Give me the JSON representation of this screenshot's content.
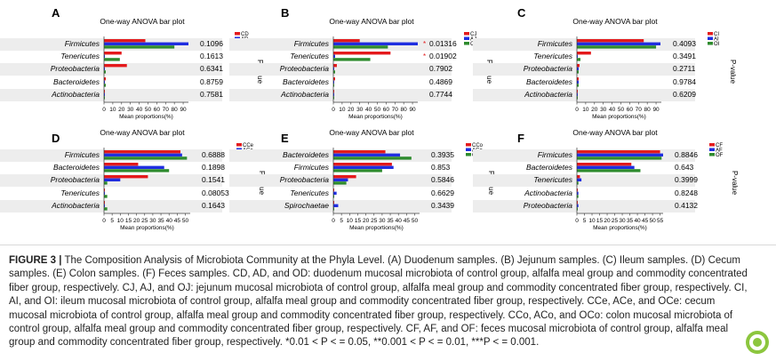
{
  "chart_data": [
    {
      "panel": "A",
      "type": "bar",
      "title": "One-way ANOVA bar plot",
      "categories": [
        "Firmicutes",
        "Tenericutes",
        "Proteobacteria",
        "Bacteroidetes",
        "Actinobacteria"
      ],
      "series": [
        {
          "name": "CD",
          "color": "#e41a1c",
          "values": [
            47,
            20,
            26,
            2,
            0.5
          ]
        },
        {
          "name": "AD",
          "color": "#1f2ee0",
          "values": [
            96,
            1,
            1,
            1,
            0.5
          ]
        },
        {
          "name": "OD",
          "color": "#2e8b2e",
          "values": [
            80,
            18,
            2,
            2,
            0.5
          ]
        }
      ],
      "xticks": [
        0,
        10,
        20,
        30,
        40,
        50,
        60,
        70,
        80,
        90
      ],
      "xlim": [
        0,
        96
      ],
      "xlabel": "Mean proportions(%)",
      "pvalues": [
        "0.1096",
        "0.1613",
        "0.6341",
        "0.8759",
        "0.7581"
      ],
      "stars": [
        "",
        "",
        "",
        "",
        ""
      ],
      "pvalue_label": "P-value"
    },
    {
      "panel": "B",
      "type": "bar",
      "title": "One-way ANOVA bar plot",
      "categories": [
        "Firmicutes",
        "Tenericutes",
        "Proteobacteria",
        "Bacteroidetes",
        "Actinobacteria"
      ],
      "series": [
        {
          "name": "CJ",
          "color": "#e41a1c",
          "values": [
            30,
            65,
            4,
            2,
            0.5
          ]
        },
        {
          "name": "AJ",
          "color": "#1f2ee0",
          "values": [
            96,
            2,
            1,
            1,
            0.5
          ]
        },
        {
          "name": "OJ",
          "color": "#2e8b2e",
          "values": [
            62,
            42,
            2,
            1,
            0.5
          ]
        }
      ],
      "xticks": [
        0,
        10,
        20,
        30,
        40,
        50,
        60,
        70,
        80,
        90
      ],
      "xlim": [
        0,
        96
      ],
      "xlabel": "Mean proportions(%)",
      "pvalues": [
        "0.01316",
        "0.01902",
        "0.7902",
        "0.4869",
        "0.7744"
      ],
      "stars": [
        "*",
        "*",
        "",
        "",
        ""
      ],
      "pvalue_label": "P-value"
    },
    {
      "panel": "C",
      "type": "bar",
      "title": "One-way ANOVA bar plot",
      "categories": [
        "Firmicutes",
        "Tenericutes",
        "Proteobacteria",
        "Bacteroidetes",
        "Actinobacteria"
      ],
      "series": [
        {
          "name": "CI",
          "color": "#e41a1c",
          "values": [
            76,
            16,
            3,
            2,
            0.5
          ]
        },
        {
          "name": "AI",
          "color": "#1f2ee0",
          "values": [
            95,
            1,
            2,
            2,
            0.5
          ]
        },
        {
          "name": "OI",
          "color": "#2e8b2e",
          "values": [
            90,
            4,
            2,
            2,
            0.5
          ]
        }
      ],
      "xticks": [
        0,
        10,
        20,
        30,
        40,
        50,
        60,
        70,
        80,
        90
      ],
      "xlim": [
        0,
        96
      ],
      "xlabel": "Mean proportions(%)",
      "pvalues": [
        "0.4093",
        "0.3491",
        "0.2711",
        "0.9784",
        "0.6209"
      ],
      "stars": [
        "",
        "",
        "",
        "",
        ""
      ],
      "pvalue_label": "P-value"
    },
    {
      "panel": "D",
      "type": "bar",
      "title": "One-way ANOVA bar plot",
      "categories": [
        "Firmicutes",
        "Bacteroidetes",
        "Proteobacteria",
        "Tenericutes",
        "Actinobacteria"
      ],
      "series": [
        {
          "name": "CCe",
          "color": "#e41a1c",
          "values": [
            47,
            21,
            27,
            0.5,
            0.5
          ]
        },
        {
          "name": "ACe",
          "color": "#1f2ee0",
          "values": [
            48,
            37,
            10,
            0.5,
            0.5
          ]
        },
        {
          "name": "OCe",
          "color": "#2e8b2e",
          "values": [
            51,
            40,
            2,
            2,
            2
          ]
        }
      ],
      "xticks": [
        0,
        5,
        10,
        15,
        20,
        25,
        30,
        35,
        40,
        45,
        50
      ],
      "xlim": [
        0,
        53
      ],
      "xlabel": "Mean proportions(%)",
      "pvalues": [
        "0.6888",
        "0.1898",
        "0.1541",
        "0.08053",
        "0.1643"
      ],
      "stars": [
        "",
        "",
        "",
        "",
        ""
      ],
      "pvalue_label": "P-value"
    },
    {
      "panel": "E",
      "type": "bar",
      "title": "One-way ANOVA bar plot",
      "categories": [
        "Bacteroidetes",
        "Firmicutes",
        "Proteobacteria",
        "Tenericutes",
        "Spirochaetae"
      ],
      "series": [
        {
          "name": "CCo",
          "color": "#e41a1c",
          "values": [
            32,
            36,
            14,
            0.5,
            0.5
          ]
        },
        {
          "name": "ACo",
          "color": "#1f2ee0",
          "values": [
            41,
            37,
            9,
            2,
            3
          ]
        },
        {
          "name": "OCo",
          "color": "#2e8b2e",
          "values": [
            48,
            30,
            8,
            0.5,
            0.5
          ]
        }
      ],
      "xticks": [
        0,
        5,
        10,
        15,
        20,
        25,
        30,
        35,
        40,
        45,
        50
      ],
      "xlim": [
        0,
        53
      ],
      "xlabel": "Mean proportions(%)",
      "pvalues": [
        "0.3935",
        "0.853",
        "0.5846",
        "0.6629",
        "0.3439"
      ],
      "stars": [
        "",
        "",
        "",
        "",
        ""
      ],
      "pvalue_label": "P-value"
    },
    {
      "panel": "F",
      "type": "bar",
      "title": "One-way ANOVA bar plot",
      "categories": [
        "Firmicutes",
        "Bacteroidetes",
        "Tenericutes",
        "Actinobacteria",
        "Proteobacteria"
      ],
      "series": [
        {
          "name": "CF",
          "color": "#e41a1c",
          "values": [
            55,
            36,
            2,
            0.5,
            0.5
          ]
        },
        {
          "name": "AF",
          "color": "#1f2ee0",
          "values": [
            57,
            38,
            3,
            1,
            1
          ]
        },
        {
          "name": "OF",
          "color": "#2e8b2e",
          "values": [
            56,
            42,
            1,
            1,
            0.5
          ]
        }
      ],
      "xticks": [
        0,
        5,
        10,
        15,
        20,
        25,
        30,
        35,
        40,
        45,
        50,
        55
      ],
      "xlim": [
        0,
        57
      ],
      "xlabel": "Mean proportions(%)",
      "pvalues": [
        "0.8846",
        "0.643",
        "0.3999",
        "0.8248",
        "0.4132"
      ],
      "stars": [
        "",
        "",
        "",
        "",
        ""
      ],
      "pvalue_label": "P-value"
    }
  ],
  "caption": {
    "label": "FIGURE 3 |",
    "text": " The Composition Analysis of Microbiota Community at the Phyla Level. (A) Duodenum samples. (B) Jejunum samples. (C) Ileum samples. (D) Cecum samples. (E) Colon samples. (F) Feces samples. CD, AD, and OD: duodenum mucosal microbiota of control group, alfalfa meal group and commodity concentrated fiber group, respectively. CJ, AJ, and OJ: jejunum mucosal microbiota of control group, alfalfa meal group and commodity concentrated fiber group, respectively. CI, AI, and OI: ileum mucosal microbiota of control group, alfalfa meal group and commodity concentrated fiber group, respectively. CCe, ACe, and OCe: cecum mucosal microbiota of control group, alfalfa meal group and commodity concentrated fiber group, respectively. CCo, ACo, and OCo: colon mucosal microbiota of control group, alfalfa meal group and commodity concentrated fiber group, respectively. CF, AF, and OF: feces mucosal microbiota of control group, alfalfa meal group and commodity concentrated fiber group, respectively. *0.01 < P < = 0.05, **0.001 < P < = 0.01, ***P < = 0.001."
  },
  "badge": {
    "icon": "leaf-logo-icon",
    "color": "#8cc63e"
  }
}
